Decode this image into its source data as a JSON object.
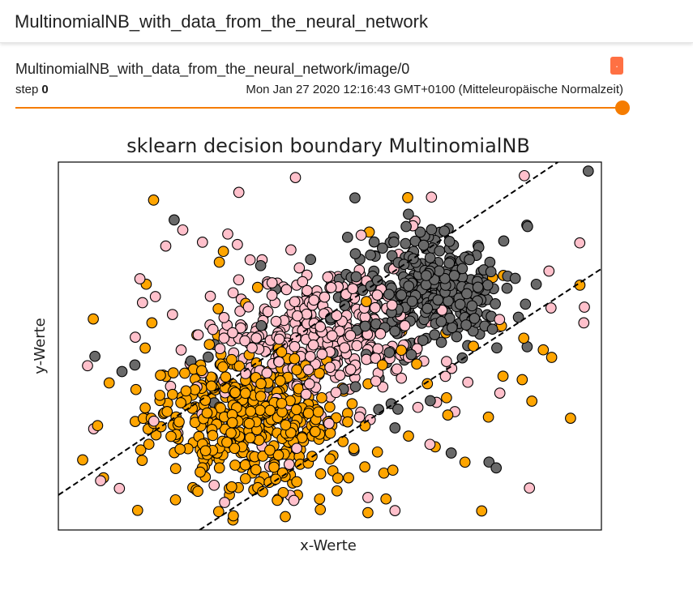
{
  "header": {
    "title": "MultinomialNB_with_data_from_the_neural_network"
  },
  "card": {
    "run_title": "MultinomialNB_with_data_from_the_neural_network/image/0",
    "menu_glyph": ".",
    "step_label": "step",
    "step_value": "0",
    "timestamp": "Mon Jan 27 2020 12:16:43 GMT+0100 (Mitteleuropäische Normalzeit)",
    "slider_fraction": 1.0
  },
  "colors": {
    "accent": "#f57c00",
    "menu": "#ff7043"
  },
  "chart_data": {
    "type": "scatter",
    "title": "sklearn decision boundary MultinomialNB",
    "xlabel": "x-Werte",
    "ylabel": "y-Werte",
    "xlim": [
      0,
      1
    ],
    "ylim": [
      0,
      1
    ],
    "grid": false,
    "series_colors": [
      "#ffa500",
      "#ffc0cb",
      "#696969"
    ],
    "boundaries": [
      {
        "x": [
          0.0,
          0.92
        ],
        "y": [
          0.095,
          1.0
        ]
      },
      {
        "x": [
          0.26,
          1.0
        ],
        "y": [
          0.0,
          0.71
        ]
      }
    ],
    "clusters": [
      {
        "class": 0,
        "center": [
          0.35,
          0.3
        ],
        "spread": [
          0.09,
          0.09
        ],
        "n": 420
      },
      {
        "class": 0,
        "center": [
          0.45,
          0.4
        ],
        "spread": [
          0.34,
          0.28
        ],
        "n": 110
      },
      {
        "class": 1,
        "center": [
          0.48,
          0.52
        ],
        "spread": [
          0.09,
          0.09
        ],
        "n": 340
      },
      {
        "class": 1,
        "center": [
          0.4,
          0.45
        ],
        "spread": [
          0.3,
          0.26
        ],
        "n": 90
      },
      {
        "class": 2,
        "center": [
          0.68,
          0.65
        ],
        "spread": [
          0.07,
          0.07
        ],
        "n": 320
      },
      {
        "class": 2,
        "center": [
          0.6,
          0.55
        ],
        "spread": [
          0.3,
          0.26
        ],
        "n": 60
      }
    ]
  }
}
